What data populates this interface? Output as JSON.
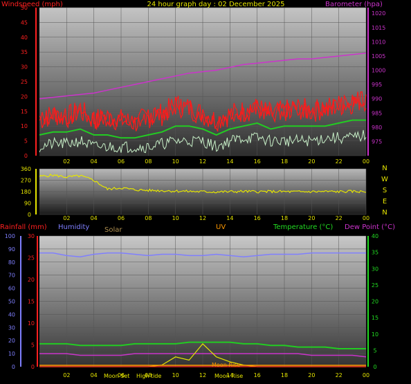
{
  "header": {
    "title": "24 hour graph day : 02 December 2025",
    "wind_label": "Windspeed (mph)",
    "baro_label": "Barometer (hpa)"
  },
  "colors": {
    "wind_gust": "#ff1a1a",
    "wind_avg": "#22cc22",
    "wind_low": "#c8f0c8",
    "baro": "#cc33cc",
    "dir": "#e6e600",
    "humidity": "#7f7fff",
    "temp": "#22cc22",
    "dew": "#cc33cc",
    "uv": "#ff9900",
    "solar": "#e6e600",
    "rain": "#ff2222",
    "text_red": "#ff2020",
    "text_mag": "#cc33cc",
    "text_green": "#22dd22",
    "text_yel": "#e6e600",
    "text_blue": "#7f7fff",
    "text_orange": "#ff9900",
    "text_tan": "#b09050"
  },
  "time_ticks": [
    "02",
    "04",
    "06",
    "08",
    "10",
    "12",
    "14",
    "16",
    "18",
    "20",
    "22",
    "00"
  ],
  "chart_data": [
    {
      "type": "line",
      "id": "wind_baro",
      "title": "24 hour graph day : 02 December 2025",
      "x": [
        0,
        1,
        2,
        3,
        4,
        5,
        6,
        7,
        8,
        9,
        10,
        11,
        12,
        13,
        14,
        15,
        16,
        17,
        18,
        19,
        20,
        21,
        22,
        23,
        24
      ],
      "left_axis": {
        "label": "Windspeed (mph)",
        "range": [
          0,
          50
        ],
        "ticks": [
          0,
          5,
          10,
          15,
          20,
          25,
          30,
          35,
          40,
          45,
          50
        ]
      },
      "right_axis": {
        "label": "Barometer (hpa)",
        "range": [
          970,
          1022
        ],
        "ticks": [
          975,
          980,
          985,
          990,
          995,
          1000,
          1005,
          1010,
          1015,
          1020
        ]
      },
      "series": [
        {
          "axis": "left",
          "color_key": "wind_gust",
          "values": [
            12,
            14,
            13,
            15,
            12,
            13,
            12,
            11,
            13,
            14,
            17,
            16,
            14,
            12,
            14,
            15,
            16,
            14,
            15,
            16,
            15,
            16,
            17,
            18,
            19
          ]
        },
        {
          "axis": "left",
          "color_key": "wind_avg",
          "values": [
            7,
            8,
            8,
            9,
            7,
            7,
            6,
            6,
            7,
            8,
            10,
            10,
            9,
            7,
            9,
            10,
            11,
            9,
            10,
            10,
            10,
            10,
            11,
            12,
            12
          ]
        },
        {
          "axis": "left",
          "color_key": "wind_low",
          "values": [
            3,
            4,
            4,
            5,
            3,
            3,
            3,
            3,
            3,
            4,
            5,
            5,
            5,
            3,
            5,
            6,
            6,
            5,
            5,
            5,
            5,
            6,
            6,
            6,
            7
          ]
        },
        {
          "axis": "right",
          "color_key": "baro",
          "values": [
            990,
            990.5,
            991,
            991.5,
            992,
            993,
            994,
            995,
            996,
            997,
            998,
            999,
            999.5,
            1000,
            1001,
            1002,
            1002.5,
            1003,
            1003.5,
            1004,
            1004,
            1004.5,
            1005,
            1005.5,
            1006
          ]
        }
      ]
    },
    {
      "type": "line",
      "id": "direction",
      "x": [
        0,
        1,
        2,
        3,
        4,
        5,
        6,
        7,
        8,
        9,
        10,
        11,
        12,
        13,
        14,
        15,
        16,
        17,
        18,
        19,
        20,
        21,
        22,
        23,
        24
      ],
      "left_axis": {
        "range": [
          0,
          360
        ],
        "ticks": [
          0,
          90,
          180,
          270,
          360
        ]
      },
      "right_labels": [
        "N",
        "W",
        "S",
        "E",
        "N"
      ],
      "series": [
        {
          "color_key": "dir",
          "values": [
            300,
            310,
            295,
            305,
            270,
            200,
            210,
            195,
            190,
            188,
            185,
            182,
            180,
            178,
            180,
            182,
            180,
            181,
            180,
            179,
            180,
            181,
            180,
            182,
            180
          ]
        }
      ]
    },
    {
      "type": "line",
      "id": "multi",
      "x": [
        0,
        1,
        2,
        3,
        4,
        5,
        6,
        7,
        8,
        9,
        10,
        11,
        12,
        13,
        14,
        15,
        16,
        17,
        18,
        19,
        20,
        21,
        22,
        23,
        24
      ],
      "legend": {
        "rainfall": "Rainfall (mm)",
        "humidity": "Humidity",
        "solar": "Solar",
        "uv": "UV",
        "temp": "Temperature (°C)",
        "dew": "Dew Point (°C)"
      },
      "humidity_axis": {
        "range": [
          0,
          100
        ],
        "ticks": [
          0,
          10,
          20,
          30,
          40,
          50,
          60,
          70,
          80,
          90,
          100
        ]
      },
      "rain_axis": {
        "range": [
          0,
          30
        ],
        "ticks": [
          0,
          5,
          10,
          15,
          20,
          25,
          30
        ]
      },
      "temp_axis": {
        "range": [
          0,
          40
        ],
        "ticks": [
          0,
          5,
          10,
          15,
          20,
          25,
          30,
          35,
          40
        ]
      },
      "series": [
        {
          "name": "Humidity",
          "axis": "humidity",
          "color_key": "humidity",
          "values": [
            87,
            87,
            85,
            84,
            86,
            87,
            87,
            86,
            85,
            86,
            86,
            85,
            85,
            86,
            85,
            84,
            85,
            86,
            86,
            86,
            87,
            87,
            87,
            87,
            87
          ]
        },
        {
          "name": "Temperature (°C)",
          "axis": "temp",
          "color_key": "temp",
          "values": [
            7,
            7,
            7,
            6.5,
            6.5,
            6.5,
            6.5,
            7,
            7,
            7,
            7,
            7.5,
            7.5,
            7.5,
            7.5,
            7,
            7,
            6.5,
            6.5,
            6,
            6,
            6,
            5.5,
            5.5,
            5.5
          ]
        },
        {
          "name": "Dew Point (°C)",
          "axis": "temp",
          "color_key": "dew",
          "values": [
            4,
            4,
            4,
            3.5,
            3.5,
            3.5,
            3.5,
            4,
            4,
            4,
            4,
            4,
            4,
            4,
            4,
            4,
            4,
            4,
            4,
            4,
            3.5,
            3.5,
            3.5,
            3.5,
            3
          ]
        },
        {
          "name": "Solar",
          "axis": "temp",
          "color_key": "solar",
          "values": [
            0,
            0,
            0,
            0,
            0,
            0,
            0,
            0,
            0,
            0.5,
            3,
            2,
            7,
            3,
            1.5,
            0.5,
            0,
            0,
            0,
            0,
            0,
            0,
            0,
            0,
            0
          ]
        },
        {
          "name": "Rainfall (mm)",
          "axis": "rain",
          "color_key": "rain",
          "values": [
            0,
            0,
            0,
            0,
            0,
            0,
            0,
            0,
            0,
            0,
            0,
            0,
            0,
            0,
            0,
            0,
            0,
            0,
            0,
            0,
            0,
            0,
            0,
            0,
            0
          ]
        }
      ],
      "events": [
        "Moon Set",
        "High tide",
        "Moon Rise"
      ]
    }
  ]
}
